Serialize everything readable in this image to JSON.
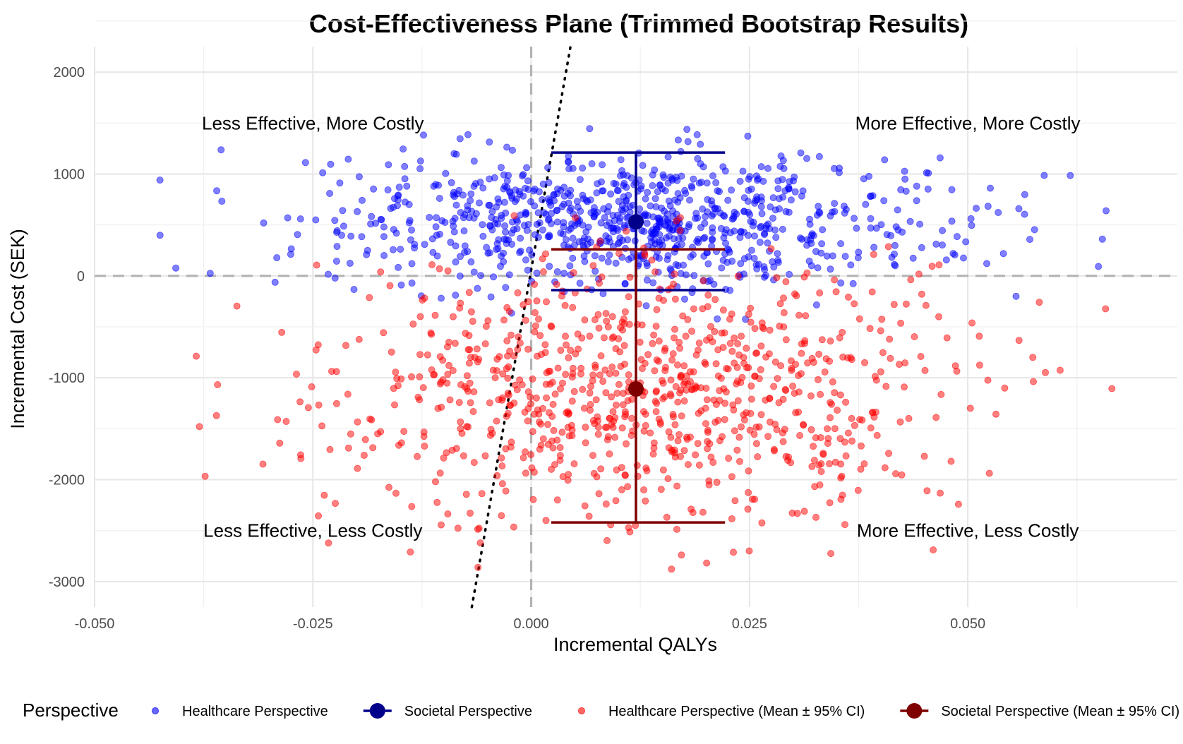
{
  "chart_data": {
    "type": "scatter",
    "title": "Cost-Effectiveness Plane (Trimmed Bootstrap Results)",
    "xlabel": "Incremental QALYs",
    "ylabel": "Incremental Cost (SEK)",
    "xlim": [
      -0.05,
      0.074
    ],
    "ylim": [
      -3250,
      2250
    ],
    "x_ticks": [
      -0.05,
      -0.025,
      0.0,
      0.025,
      0.05
    ],
    "x_tick_labels": [
      "-0.050",
      "-0.025",
      "0.000",
      "0.025",
      "0.050"
    ],
    "y_ticks": [
      -3000,
      -2000,
      -1000,
      0,
      1000,
      2000
    ],
    "y_tick_labels": [
      "-3000",
      "-2000",
      "-1000",
      "0",
      "1000",
      "2000"
    ],
    "grid": true,
    "reference_lines": {
      "x": 0,
      "y": 0,
      "style": "dashed"
    },
    "threshold_line": {
      "style": "dotted",
      "points": [
        [
          -0.0068,
          -3250
        ],
        [
          0.0045,
          2250
        ]
      ]
    },
    "quadrant_labels": [
      {
        "text": "Less Effective, More Costly",
        "x": -0.025,
        "y": 1500
      },
      {
        "text": "More Effective, More Costly",
        "x": 0.05,
        "y": 1500
      },
      {
        "text": "Less Effective, Less Costly",
        "x": -0.025,
        "y": -2500
      },
      {
        "text": "More Effective, Less Costly",
        "x": 0.05,
        "y": -2500
      }
    ],
    "series": [
      {
        "name": "Healthcare Perspective",
        "type": "scatter",
        "color": "#0000ff",
        "n_points": 900,
        "x_mean": 0.012,
        "x_sd": 0.018,
        "y_mean": 540,
        "y_sd": 330
      },
      {
        "name": "Healthcare Perspective (Mean ± 95% CI)",
        "type": "scatter",
        "color": "#ff0000",
        "n_points": 900,
        "x_mean": 0.012,
        "x_sd": 0.018,
        "y_mean": -1120,
        "y_sd": 650
      },
      {
        "name": "Societal Perspective",
        "type": "mean_ci",
        "color": "#00008b",
        "mean": [
          0.012,
          530
        ],
        "x_ci": [
          0.0023,
          0.0222
        ],
        "y_ci": [
          -140,
          1210
        ]
      },
      {
        "name": "Societal Perspective (Mean ± 95% CI)",
        "type": "mean_ci",
        "color": "#7f0000",
        "mean": [
          0.012,
          -1110
        ],
        "x_ci": [
          0.0023,
          0.0222
        ],
        "y_ci": [
          -2420,
          260
        ]
      }
    ],
    "legend": {
      "title": "Perspective",
      "position": "bottom",
      "entries": [
        {
          "label": "Healthcare Perspective",
          "marker": "point",
          "color": "#0000ff"
        },
        {
          "label": "Societal Perspective",
          "marker": "point-line",
          "color": "#00008b"
        },
        {
          "label": "Healthcare Perspective (Mean ± 95% CI)",
          "marker": "point",
          "color": "#ff0000"
        },
        {
          "label": "Societal Perspective (Mean ± 95% CI)",
          "marker": "point-line",
          "color": "#7f0000"
        }
      ]
    }
  }
}
